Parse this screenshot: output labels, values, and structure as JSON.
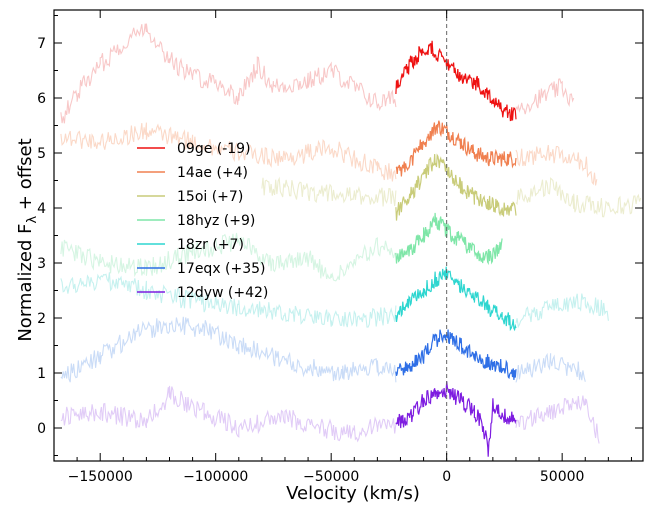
{
  "chart_data": {
    "type": "line",
    "xlabel": "Velocity (km/s)",
    "ylabel": "Normalized F",
    "ylabel_sub": "λ",
    "ylabel_suffix": " + offset",
    "xlim": [
      -170000,
      85000
    ],
    "ylim": [
      -0.6,
      7.6
    ],
    "xticks": [
      -150000,
      -100000,
      -50000,
      0,
      50000
    ],
    "xtick_labels": [
      "−150000",
      "−100000",
      "−50000",
      "0",
      "50000"
    ],
    "yticks": [
      0,
      1,
      2,
      3,
      4,
      5,
      6,
      7
    ],
    "ytick_labels": [
      "0",
      "1",
      "2",
      "3",
      "4",
      "5",
      "6",
      "7"
    ],
    "reference_line_x": 0,
    "grid": false,
    "legend_position": "center-left",
    "series": [
      {
        "name": "09ge (-19)",
        "color": "#ee1111",
        "faint_color": "#f8c8c8",
        "offset": 6.0,
        "faint_points": [
          [
            -167000,
            5.6
          ],
          [
            -160000,
            6.1
          ],
          [
            -150000,
            6.6
          ],
          [
            -140000,
            7.0
          ],
          [
            -130000,
            7.3
          ],
          [
            -120000,
            6.7
          ],
          [
            -110000,
            6.4
          ],
          [
            -100000,
            6.3
          ],
          [
            -90000,
            6.0
          ],
          [
            -82000,
            6.6
          ],
          [
            -75000,
            6.2
          ],
          [
            -60000,
            6.3
          ],
          [
            -50000,
            6.5
          ],
          [
            -40000,
            6.2
          ],
          [
            -30000,
            5.9
          ],
          [
            -22000,
            6.0
          ],
          [
            30000,
            5.8
          ],
          [
            40000,
            6.0
          ],
          [
            50000,
            6.2
          ],
          [
            55000,
            5.9
          ]
        ],
        "bright_points": [
          [
            -22000,
            6.2
          ],
          [
            -18000,
            6.5
          ],
          [
            -12000,
            6.8
          ],
          [
            -6000,
            6.9
          ],
          [
            0,
            6.6
          ],
          [
            6000,
            6.4
          ],
          [
            12000,
            6.3
          ],
          [
            18000,
            6.1
          ],
          [
            24000,
            5.8
          ],
          [
            30000,
            5.7
          ]
        ]
      },
      {
        "name": "14ae (+4)",
        "color": "#f08050",
        "faint_color": "#fbd9c8",
        "offset": 5.0,
        "faint_points": [
          [
            -167000,
            5.3
          ],
          [
            -150000,
            5.2
          ],
          [
            -130000,
            5.4
          ],
          [
            -110000,
            5.2
          ],
          [
            -90000,
            5.0
          ],
          [
            -70000,
            4.9
          ],
          [
            -50000,
            5.1
          ],
          [
            -30000,
            4.7
          ],
          [
            -22000,
            4.6
          ],
          [
            30000,
            4.9
          ],
          [
            45000,
            5.0
          ],
          [
            60000,
            4.8
          ],
          [
            65000,
            4.5
          ]
        ],
        "bright_points": [
          [
            -22000,
            4.6
          ],
          [
            -15000,
            4.9
          ],
          [
            -8000,
            5.3
          ],
          [
            -4000,
            5.5
          ],
          [
            0,
            5.4
          ],
          [
            6000,
            5.2
          ],
          [
            12000,
            5.0
          ],
          [
            18000,
            4.9
          ],
          [
            24000,
            4.9
          ],
          [
            30000,
            4.9
          ]
        ]
      },
      {
        "name": "15oi (+7)",
        "color": "#c9cc7a",
        "faint_color": "#ecedd0",
        "offset": 4.0,
        "faint_points": [
          [
            -80000,
            4.4
          ],
          [
            -60000,
            4.3
          ],
          [
            -40000,
            4.2
          ],
          [
            -22000,
            4.2
          ],
          [
            30000,
            4.2
          ],
          [
            45000,
            4.4
          ],
          [
            55000,
            4.1
          ],
          [
            70000,
            4.0
          ],
          [
            84000,
            4.1
          ]
        ],
        "bright_points": [
          [
            -22000,
            3.9
          ],
          [
            -16000,
            4.2
          ],
          [
            -10000,
            4.6
          ],
          [
            -5000,
            4.9
          ],
          [
            0,
            4.7
          ],
          [
            6000,
            4.4
          ],
          [
            12000,
            4.2
          ],
          [
            18000,
            4.1
          ],
          [
            24000,
            4.0
          ],
          [
            30000,
            4.0
          ]
        ]
      },
      {
        "name": "18hyz (+9)",
        "color": "#7fe6a8",
        "faint_color": "#d6f5e3",
        "offset": 3.0,
        "faint_points": [
          [
            -167000,
            3.3
          ],
          [
            -150000,
            3.0
          ],
          [
            -130000,
            2.9
          ],
          [
            -110000,
            3.2
          ],
          [
            -90000,
            3.4
          ],
          [
            -75000,
            3.0
          ],
          [
            -60000,
            3.1
          ],
          [
            -50000,
            2.7
          ],
          [
            -40000,
            3.0
          ],
          [
            -30000,
            3.3
          ],
          [
            -22000,
            3.2
          ]
        ],
        "bright_points": [
          [
            -22000,
            3.1
          ],
          [
            -16000,
            3.2
          ],
          [
            -10000,
            3.5
          ],
          [
            -5000,
            3.8
          ],
          [
            0,
            3.6
          ],
          [
            6000,
            3.4
          ],
          [
            12000,
            3.2
          ],
          [
            18000,
            3.1
          ],
          [
            24000,
            3.3
          ]
        ]
      },
      {
        "name": "18zr (+7)",
        "color": "#2ed6d0",
        "faint_color": "#c6f1ef",
        "offset": 2.0,
        "faint_points": [
          [
            -167000,
            2.6
          ],
          [
            -150000,
            2.7
          ],
          [
            -130000,
            2.5
          ],
          [
            -110000,
            2.3
          ],
          [
            -90000,
            2.2
          ],
          [
            -70000,
            2.1
          ],
          [
            -50000,
            2.0
          ],
          [
            -30000,
            2.0
          ],
          [
            -22000,
            2.1
          ],
          [
            30000,
            2.0
          ],
          [
            45000,
            2.2
          ],
          [
            60000,
            2.3
          ],
          [
            70000,
            2.1
          ]
        ],
        "bright_points": [
          [
            -22000,
            2.0
          ],
          [
            -16000,
            2.3
          ],
          [
            -10000,
            2.5
          ],
          [
            -5000,
            2.7
          ],
          [
            0,
            2.8
          ],
          [
            6000,
            2.6
          ],
          [
            12000,
            2.4
          ],
          [
            18000,
            2.2
          ],
          [
            24000,
            2.0
          ],
          [
            30000,
            1.9
          ]
        ]
      },
      {
        "name": "17eqx (+35)",
        "color": "#2f6fe6",
        "faint_color": "#cadcf7",
        "offset": 1.0,
        "faint_points": [
          [
            -167000,
            0.9
          ],
          [
            -150000,
            1.3
          ],
          [
            -135000,
            1.7
          ],
          [
            -120000,
            1.9
          ],
          [
            -105000,
            1.8
          ],
          [
            -90000,
            1.5
          ],
          [
            -75000,
            1.3
          ],
          [
            -60000,
            1.1
          ],
          [
            -45000,
            1.0
          ],
          [
            -30000,
            1.1
          ],
          [
            -22000,
            1.0
          ],
          [
            30000,
            1.0
          ],
          [
            45000,
            1.2
          ],
          [
            60000,
            1.0
          ]
        ],
        "bright_points": [
          [
            -22000,
            1.0
          ],
          [
            -16000,
            1.1
          ],
          [
            -10000,
            1.3
          ],
          [
            -5000,
            1.6
          ],
          [
            0,
            1.7
          ],
          [
            6000,
            1.5
          ],
          [
            12000,
            1.3
          ],
          [
            18000,
            1.2
          ],
          [
            24000,
            1.1
          ],
          [
            30000,
            1.0
          ]
        ]
      },
      {
        "name": "12dyw (+42)",
        "color": "#7e1de0",
        "faint_color": "#e1ccf7",
        "offset": 0.0,
        "faint_points": [
          [
            -167000,
            0.2
          ],
          [
            -150000,
            0.3
          ],
          [
            -130000,
            0.1
          ],
          [
            -120000,
            0.6
          ],
          [
            -105000,
            0.3
          ],
          [
            -90000,
            0.0
          ],
          [
            -70000,
            0.2
          ],
          [
            -55000,
            0.0
          ],
          [
            -40000,
            -0.1
          ],
          [
            -30000,
            0.1
          ],
          [
            -22000,
            0.0
          ],
          [
            30000,
            0.1
          ],
          [
            45000,
            0.3
          ],
          [
            60000,
            0.5
          ],
          [
            66000,
            -0.2
          ]
        ],
        "bright_points": [
          [
            -22000,
            0.1
          ],
          [
            -16000,
            0.2
          ],
          [
            -10000,
            0.5
          ],
          [
            -5000,
            0.6
          ],
          [
            0,
            0.7
          ],
          [
            6000,
            0.5
          ],
          [
            12000,
            0.3
          ],
          [
            16000,
            0.0
          ],
          [
            18000,
            -0.4
          ],
          [
            20000,
            0.4
          ],
          [
            24000,
            0.2
          ],
          [
            30000,
            0.2
          ]
        ]
      }
    ]
  }
}
